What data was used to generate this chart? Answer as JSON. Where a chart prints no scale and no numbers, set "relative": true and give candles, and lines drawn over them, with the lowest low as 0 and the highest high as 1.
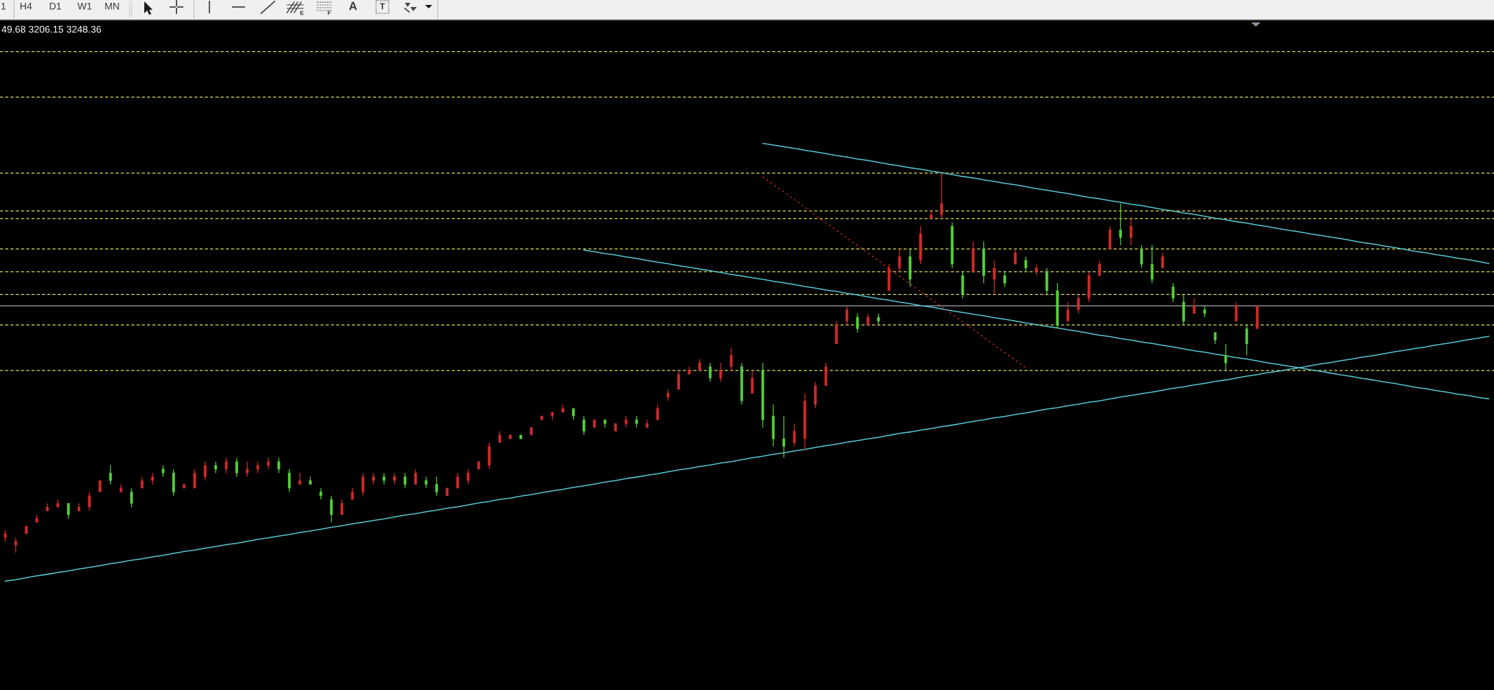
{
  "chart_data": {
    "type": "candlestick",
    "relative": true,
    "categories": [
      null,
      null,
      null,
      null,
      null,
      null,
      null,
      null,
      null,
      null,
      null,
      null,
      null,
      null,
      null,
      null,
      null,
      null,
      null,
      null,
      null,
      null,
      null,
      null,
      null,
      null,
      null,
      null,
      null,
      null,
      null,
      null,
      null,
      null,
      null,
      null,
      null,
      null,
      null,
      null,
      null,
      null,
      null,
      null,
      null,
      null,
      null,
      null,
      null,
      null,
      null,
      null,
      null,
      null,
      null,
      null,
      null,
      null,
      null,
      null,
      null,
      null,
      null,
      null,
      null,
      null,
      null,
      null,
      null,
      null,
      null,
      null,
      null,
      null,
      null,
      null,
      null,
      null,
      null,
      null,
      null,
      null,
      null,
      null,
      null,
      null,
      null,
      null,
      null,
      null,
      null,
      null,
      null,
      null,
      null,
      null,
      null,
      null,
      null,
      null,
      null,
      null,
      null,
      null,
      null,
      null,
      null,
      null,
      null,
      null,
      null,
      null,
      null,
      null,
      null,
      null,
      null,
      null,
      null,
      null,
      null,
      null,
      null,
      null,
      null,
      null,
      null,
      null,
      null,
      null,
      null,
      null,
      null,
      null,
      null,
      null,
      null,
      null,
      null,
      null,
      null,
      null
    ],
    "ohlc": [
      [
        0.04,
        0.06,
        0.03,
        0.05
      ],
      [
        0.02,
        0.04,
        0.0,
        0.03
      ],
      [
        0.05,
        0.07,
        0.05,
        0.07
      ],
      [
        0.08,
        0.1,
        0.08,
        0.09
      ],
      [
        0.11,
        0.13,
        0.11,
        0.12
      ],
      [
        0.12,
        0.14,
        0.12,
        0.13
      ],
      [
        0.13,
        0.13,
        0.09,
        0.1
      ],
      [
        0.11,
        0.13,
        0.11,
        0.12
      ],
      [
        0.12,
        0.16,
        0.11,
        0.15
      ],
      [
        0.16,
        0.19,
        0.16,
        0.19
      ],
      [
        0.21,
        0.23,
        0.18,
        0.19
      ],
      [
        0.16,
        0.18,
        0.16,
        0.17
      ],
      [
        0.16,
        0.17,
        0.12,
        0.13
      ],
      [
        0.17,
        0.2,
        0.17,
        0.19
      ],
      [
        0.19,
        0.21,
        0.18,
        0.2
      ],
      [
        0.22,
        0.23,
        0.2,
        0.21
      ],
      [
        0.21,
        0.22,
        0.15,
        0.16
      ],
      [
        0.17,
        0.18,
        0.17,
        0.18
      ],
      [
        0.17,
        0.22,
        0.17,
        0.21
      ],
      [
        0.2,
        0.24,
        0.19,
        0.23
      ],
      [
        0.23,
        0.24,
        0.21,
        0.22
      ],
      [
        0.22,
        0.25,
        0.21,
        0.24
      ],
      [
        0.24,
        0.25,
        0.2,
        0.21
      ],
      [
        0.21,
        0.24,
        0.2,
        0.22
      ],
      [
        0.22,
        0.24,
        0.21,
        0.23
      ],
      [
        0.23,
        0.25,
        0.22,
        0.24
      ],
      [
        0.24,
        0.25,
        0.21,
        0.22
      ],
      [
        0.21,
        0.22,
        0.16,
        0.17
      ],
      [
        0.18,
        0.21,
        0.18,
        0.19
      ],
      [
        0.19,
        0.2,
        0.18,
        0.18
      ],
      [
        0.16,
        0.17,
        0.14,
        0.15
      ],
      [
        0.14,
        0.15,
        0.08,
        0.1
      ],
      [
        0.1,
        0.14,
        0.1,
        0.13
      ],
      [
        0.14,
        0.17,
        0.14,
        0.16
      ],
      [
        0.16,
        0.21,
        0.15,
        0.2
      ],
      [
        0.19,
        0.21,
        0.18,
        0.2
      ],
      [
        0.2,
        0.21,
        0.18,
        0.19
      ],
      [
        0.19,
        0.21,
        0.18,
        0.2
      ],
      [
        0.2,
        0.21,
        0.17,
        0.18
      ],
      [
        0.18,
        0.22,
        0.18,
        0.21
      ],
      [
        0.19,
        0.2,
        0.17,
        0.18
      ],
      [
        0.18,
        0.2,
        0.15,
        0.16
      ],
      [
        0.15,
        0.17,
        0.15,
        0.17
      ],
      [
        0.17,
        0.21,
        0.17,
        0.2
      ],
      [
        0.19,
        0.22,
        0.18,
        0.21
      ],
      [
        0.22,
        0.24,
        0.22,
        0.24
      ],
      [
        0.23,
        0.29,
        0.22,
        0.28
      ],
      [
        0.29,
        0.32,
        0.29,
        0.31
      ],
      [
        0.3,
        0.31,
        0.3,
        0.31
      ],
      [
        0.31,
        0.31,
        0.3,
        0.3
      ],
      [
        0.31,
        0.33,
        0.31,
        0.33
      ],
      [
        0.35,
        0.36,
        0.35,
        0.36
      ],
      [
        0.36,
        0.37,
        0.35,
        0.37
      ],
      [
        0.37,
        0.39,
        0.37,
        0.38
      ],
      [
        0.38,
        0.38,
        0.35,
        0.36
      ],
      [
        0.35,
        0.36,
        0.31,
        0.32
      ],
      [
        0.33,
        0.35,
        0.33,
        0.35
      ],
      [
        0.35,
        0.35,
        0.33,
        0.34
      ],
      [
        0.32,
        0.34,
        0.32,
        0.34
      ],
      [
        0.34,
        0.36,
        0.33,
        0.35
      ],
      [
        0.35,
        0.36,
        0.33,
        0.34
      ],
      [
        0.33,
        0.35,
        0.33,
        0.34
      ],
      [
        0.35,
        0.39,
        0.35,
        0.38
      ],
      [
        0.41,
        0.43,
        0.4,
        0.42
      ],
      [
        0.43,
        0.48,
        0.43,
        0.47
      ],
      [
        0.47,
        0.49,
        0.47,
        0.48
      ],
      [
        0.48,
        0.51,
        0.48,
        0.5
      ],
      [
        0.49,
        0.5,
        0.45,
        0.46
      ],
      [
        0.46,
        0.5,
        0.45,
        0.48
      ],
      [
        0.49,
        0.54,
        0.48,
        0.52
      ],
      [
        0.49,
        0.5,
        0.39,
        0.4
      ],
      [
        0.42,
        0.48,
        0.42,
        0.46
      ],
      [
        0.48,
        0.5,
        0.33,
        0.35
      ],
      [
        0.36,
        0.39,
        0.28,
        0.3
      ],
      [
        0.3,
        0.36,
        0.25,
        0.28
      ],
      [
        0.29,
        0.34,
        0.28,
        0.32
      ],
      [
        0.3,
        0.42,
        0.27,
        0.4
      ],
      [
        0.39,
        0.45,
        0.38,
        0.44
      ],
      [
        0.44,
        0.5,
        0.44,
        0.49
      ],
      [
        0.55,
        0.61,
        0.55,
        0.6
      ],
      [
        0.61,
        0.65,
        0.6,
        0.64
      ],
      [
        0.62,
        0.63,
        0.58,
        0.59
      ],
      [
        0.6,
        0.63,
        0.6,
        0.62
      ],
      [
        0.62,
        0.63,
        0.6,
        0.61
      ],
      [
        0.69,
        0.76,
        0.69,
        0.75
      ],
      [
        0.75,
        0.8,
        0.74,
        0.78
      ],
      [
        0.78,
        0.8,
        0.7,
        0.72
      ],
      [
        0.77,
        0.86,
        0.76,
        0.84
      ],
      [
        0.88,
        0.9,
        0.88,
        0.89
      ],
      [
        0.89,
        1.0,
        0.88,
        0.92
      ],
      [
        0.86,
        0.87,
        0.75,
        0.76
      ],
      [
        0.73,
        0.74,
        0.67,
        0.68
      ],
      [
        0.74,
        0.82,
        0.74,
        0.8
      ],
      [
        0.8,
        0.82,
        0.71,
        0.73
      ],
      [
        0.72,
        0.77,
        0.68,
        0.75
      ],
      [
        0.73,
        0.74,
        0.7,
        0.71
      ],
      [
        0.76,
        0.8,
        0.76,
        0.79
      ],
      [
        0.77,
        0.78,
        0.74,
        0.75
      ],
      [
        0.74,
        0.76,
        0.73,
        0.75
      ],
      [
        0.74,
        0.75,
        0.68,
        0.69
      ],
      [
        0.69,
        0.71,
        0.59,
        0.6
      ],
      [
        0.61,
        0.66,
        0.61,
        0.64
      ],
      [
        0.64,
        0.68,
        0.63,
        0.67
      ],
      [
        0.67,
        0.74,
        0.66,
        0.73
      ],
      [
        0.73,
        0.77,
        0.73,
        0.76
      ],
      [
        0.8,
        0.86,
        0.8,
        0.85
      ],
      [
        0.85,
        0.92,
        0.81,
        0.83
      ],
      [
        0.83,
        0.88,
        0.81,
        0.86
      ],
      [
        0.8,
        0.81,
        0.75,
        0.76
      ],
      [
        0.76,
        0.81,
        0.71,
        0.72
      ],
      [
        0.75,
        0.79,
        0.75,
        0.78
      ],
      [
        0.7,
        0.71,
        0.66,
        0.67
      ],
      [
        0.66,
        0.68,
        0.6,
        0.61
      ],
      [
        0.63,
        0.67,
        0.63,
        0.65
      ],
      [
        0.64,
        0.65,
        0.62,
        0.63
      ],
      [
        0.58,
        0.58,
        0.55,
        0.56
      ],
      [
        0.52,
        0.55,
        0.48,
        0.5
      ],
      [
        0.61,
        0.66,
        0.61,
        0.65
      ],
      [
        0.59,
        0.6,
        0.52,
        0.55
      ],
      [
        0.59,
        0.65,
        0.59,
        0.65
      ],
      null,
      null,
      null,
      null,
      null,
      null,
      null,
      null,
      null,
      null,
      null,
      null,
      null,
      null,
      null,
      null,
      null,
      null,
      null,
      null,
      null,
      null
    ],
    "colors": [
      "#d42a2a",
      "#d42a2a",
      "#d42a2a",
      "#d42a2a",
      "#d42a2a",
      "#d42a2a",
      "#55d13b",
      "#d42a2a",
      "#d42a2a",
      "#d42a2a",
      "#55d13b",
      "#d42a2a",
      "#55d13b",
      "#d42a2a",
      "#d42a2a",
      "#55d13b",
      "#55d13b",
      "#d42a2a",
      "#d42a2a",
      "#d42a2a",
      "#55d13b",
      "#d42a2a",
      "#55d13b",
      "#d42a2a",
      "#d42a2a",
      "#d42a2a",
      "#55d13b",
      "#55d13b",
      "#d42a2a",
      "#55d13b",
      "#55d13b",
      "#55d13b",
      "#d42a2a",
      "#d42a2a",
      "#d42a2a",
      "#d42a2a",
      "#55d13b",
      "#d42a2a",
      "#55d13b",
      "#d42a2a",
      "#55d13b",
      "#55d13b",
      "#d42a2a",
      "#d42a2a",
      "#d42a2a",
      "#d42a2a",
      "#d42a2a",
      "#d42a2a",
      "#d42a2a",
      "#55d13b",
      "#d42a2a",
      "#d42a2a",
      "#d42a2a",
      "#d42a2a",
      "#55d13b",
      "#55d13b",
      "#d42a2a",
      "#55d13b",
      "#d42a2a",
      "#d42a2a",
      "#55d13b",
      "#d42a2a",
      "#d42a2a",
      "#d42a2a",
      "#d42a2a",
      "#d42a2a",
      "#d42a2a",
      "#55d13b",
      "#d42a2a",
      "#d42a2a",
      "#55d13b",
      "#d42a2a",
      "#55d13b",
      "#55d13b",
      "#55d13b",
      "#d42a2a",
      "#d42a2a",
      "#d42a2a",
      "#d42a2a",
      "#d42a2a",
      "#d42a2a",
      "#55d13b",
      "#d42a2a",
      "#55d13b",
      "#d42a2a",
      "#d42a2a",
      "#55d13b",
      "#d42a2a",
      "#d42a2a",
      "#d42a2a",
      "#55d13b",
      "#55d13b",
      "#d42a2a",
      "#55d13b",
      "#d42a2a",
      "#55d13b",
      "#d42a2a",
      "#55d13b",
      "#d42a2a",
      "#55d13b",
      "#55d13b",
      "#d42a2a",
      "#d42a2a",
      "#d42a2a",
      "#d42a2a",
      "#d42a2a",
      "#55d13b",
      "#d42a2a",
      "#55d13b",
      "#55d13b",
      "#d42a2a",
      "#55d13b",
      "#55d13b",
      "#d42a2a",
      "#55d13b",
      "#55d13b",
      "#55d13b",
      "#d42a2a",
      "#55d13b",
      "#d42a2a",
      null,
      null,
      null,
      null,
      null,
      null,
      null,
      null,
      null,
      null,
      null,
      null,
      null,
      null,
      null,
      null,
      null,
      null,
      null,
      null,
      null,
      null
    ],
    "series": [
      {
        "type": "line",
        "color": "#56c5d0",
        "values": [
          -0.075,
          -0.071,
          -0.066,
          -0.061,
          -0.057,
          -0.052,
          -0.048,
          -0.043,
          -0.039,
          -0.034,
          -0.029,
          -0.025,
          -0.02,
          -0.016,
          -0.011,
          -0.007,
          -0.002,
          0.003,
          0.007,
          0.012,
          0.016,
          0.021,
          0.025,
          0.03,
          0.035,
          0.039,
          0.044,
          0.048,
          0.053,
          0.057,
          0.062,
          0.067,
          0.071,
          0.076,
          0.08,
          0.085,
          0.089,
          0.094,
          0.099,
          0.103,
          0.108,
          0.112,
          0.117,
          0.121,
          0.126,
          0.131,
          0.135,
          0.14,
          0.144,
          0.149,
          0.153,
          0.158,
          0.163,
          0.167,
          0.172,
          0.176,
          0.181,
          0.186,
          0.19,
          0.195,
          0.199,
          0.204,
          0.208,
          0.213,
          0.218,
          0.222,
          0.227,
          0.231,
          0.236,
          0.24,
          0.245,
          0.25,
          0.254,
          0.259,
          0.263,
          0.268,
          0.272,
          0.277,
          0.282,
          0.286,
          0.291,
          0.295,
          0.3,
          0.304,
          0.309,
          0.314,
          0.318,
          0.323,
          0.327,
          0.332,
          0.336,
          0.341,
          0.346,
          0.35,
          0.355,
          0.359,
          0.364,
          0.368,
          0.373,
          0.378,
          0.382,
          0.387,
          0.391,
          0.396,
          0.4,
          0.405,
          0.41,
          0.414,
          0.419,
          0.423,
          0.428,
          0.433,
          0.437,
          0.442,
          0.446,
          0.451,
          0.455,
          0.46,
          0.465,
          0.469,
          0.474,
          0.478,
          0.483,
          0.487,
          0.492,
          0.497,
          0.501,
          0.506,
          0.51,
          0.515,
          0.519,
          0.524,
          0.529,
          0.533,
          0.538,
          0.542,
          0.547,
          0.551,
          0.556,
          0.561,
          0.565,
          0.57
        ]
      },
      {
        "type": "line",
        "color": "#56c5d0",
        "values": [
          null,
          null,
          null,
          null,
          null,
          null,
          null,
          null,
          null,
          null,
          null,
          null,
          null,
          null,
          null,
          null,
          null,
          null,
          null,
          null,
          null,
          null,
          null,
          null,
          null,
          null,
          null,
          null,
          null,
          null,
          null,
          null,
          null,
          null,
          null,
          null,
          null,
          null,
          null,
          null,
          null,
          null,
          null,
          null,
          null,
          null,
          null,
          null,
          null,
          null,
          null,
          null,
          null,
          null,
          null,
          null,
          null,
          null,
          null,
          null,
          null,
          null,
          null,
          null,
          null,
          null,
          null,
          null,
          null,
          null,
          null,
          null,
          1.078,
          1.074,
          1.069,
          1.065,
          1.06,
          1.056,
          1.051,
          1.046,
          1.042,
          1.037,
          1.033,
          1.028,
          1.023,
          1.019,
          1.014,
          1.01,
          1.005,
          1.001,
          0.996,
          0.991,
          0.987,
          0.982,
          0.978,
          0.973,
          0.969,
          0.964,
          0.959,
          0.955,
          0.95,
          0.946,
          0.941,
          0.936,
          0.932,
          0.927,
          0.923,
          0.918,
          0.914,
          0.909,
          0.904,
          0.9,
          0.895,
          0.891,
          0.886,
          0.881,
          0.877,
          0.872,
          0.868,
          0.863,
          0.859,
          0.854,
          0.849,
          0.845,
          0.84,
          0.836,
          0.831,
          0.827,
          0.822,
          0.817,
          0.813,
          0.808,
          0.804,
          0.799,
          0.794,
          0.79,
          0.785,
          0.781,
          0.776,
          0.772,
          0.767,
          0.762
        ]
      },
      {
        "type": "line",
        "color": "#56c5d0",
        "values": [
          null,
          null,
          null,
          null,
          null,
          null,
          null,
          null,
          null,
          null,
          null,
          null,
          null,
          null,
          null,
          null,
          null,
          null,
          null,
          null,
          null,
          null,
          null,
          null,
          null,
          null,
          null,
          null,
          null,
          null,
          null,
          null,
          null,
          null,
          null,
          null,
          null,
          null,
          null,
          null,
          null,
          null,
          null,
          null,
          null,
          null,
          null,
          null,
          null,
          null,
          null,
          null,
          null,
          null,
          null,
          0.797,
          0.793,
          0.788,
          0.784,
          0.779,
          0.775,
          0.77,
          0.765,
          0.761,
          0.756,
          0.752,
          0.747,
          0.743,
          0.738,
          0.733,
          0.729,
          0.724,
          0.72,
          0.715,
          0.711,
          0.706,
          0.701,
          0.697,
          0.692,
          0.688,
          0.683,
          0.679,
          0.674,
          0.669,
          0.665,
          0.66,
          0.656,
          0.651,
          0.647,
          0.642,
          0.637,
          0.633,
          0.628,
          0.624,
          0.619,
          0.615,
          0.61,
          0.605,
          0.601,
          0.596,
          0.592,
          0.587,
          0.583,
          0.578,
          0.573,
          0.569,
          0.564,
          0.56,
          0.555,
          0.551,
          0.546,
          0.542,
          0.537,
          0.532,
          0.528,
          0.523,
          0.519,
          0.514,
          0.51,
          0.505,
          0.5,
          0.496,
          0.491,
          0.487,
          0.482,
          0.478,
          0.473,
          0.468,
          0.464,
          0.459,
          0.455,
          0.45,
          0.446,
          0.441,
          0.436,
          0.432,
          0.427,
          0.423,
          0.418,
          0.414,
          0.409,
          0.405
        ]
      },
      {
        "type": "line",
        "color": "#c8281e",
        "line_style": "dotted",
        "values": [
          null,
          null,
          null,
          null,
          null,
          null,
          null,
          null,
          null,
          null,
          null,
          null,
          null,
          null,
          null,
          null,
          null,
          null,
          null,
          null,
          null,
          null,
          null,
          null,
          null,
          null,
          null,
          null,
          null,
          null,
          null,
          null,
          null,
          null,
          null,
          null,
          null,
          null,
          null,
          null,
          null,
          null,
          null,
          null,
          null,
          null,
          null,
          null,
          null,
          null,
          null,
          null,
          null,
          null,
          null,
          null,
          null,
          null,
          null,
          null,
          null,
          null,
          null,
          null,
          null,
          null,
          null,
          null,
          null,
          null,
          null,
          null,
          0.99,
          0.97,
          0.95,
          0.93,
          0.91,
          0.889,
          0.869,
          0.849,
          0.829,
          0.809,
          0.789,
          0.769,
          0.749,
          0.728,
          0.708,
          0.688,
          0.668,
          0.648,
          0.628,
          0.608,
          0.588,
          0.567,
          0.547,
          0.527,
          0.507,
          0.487,
          null,
          null,
          null,
          null,
          null,
          null,
          null,
          null,
          null,
          null,
          null,
          null,
          null,
          null,
          null,
          null,
          null,
          null,
          null,
          null,
          null,
          null,
          null,
          null,
          null,
          null,
          null,
          null,
          null,
          null,
          null,
          null,
          null,
          null,
          null,
          null,
          null,
          null,
          null,
          null,
          null,
          null,
          null,
          null
        ]
      }
    ],
    "ref_lines": [
      {
        "axis": "y",
        "value": 1.32,
        "color": "#e2e25a",
        "line_style": "dashed"
      },
      {
        "axis": "y",
        "value": 1.2,
        "color": "#e2e25a",
        "line_style": "dashed"
      },
      {
        "axis": "y",
        "value": 1.0,
        "color": "#e2e25a",
        "line_style": "dashed"
      },
      {
        "axis": "y",
        "value": 0.9,
        "color": "#e2e25a",
        "line_style": "dashed"
      },
      {
        "axis": "y",
        "value": 0.88,
        "color": "#e2e25a",
        "line_style": "dashed"
      },
      {
        "axis": "y",
        "value": 0.8,
        "color": "#e2e25a",
        "line_style": "dashed"
      },
      {
        "axis": "y",
        "value": 0.74,
        "color": "#e2e25a",
        "line_style": "dashed"
      },
      {
        "axis": "y",
        "value": 0.68,
        "color": "#e2e25a",
        "line_style": "dashed"
      },
      {
        "axis": "y",
        "value": 0.6,
        "color": "#e2e25a",
        "line_style": "dashed"
      },
      {
        "axis": "y",
        "value": 0.48,
        "color": "#e2e25a",
        "line_style": "dashed"
      },
      {
        "axis": "y",
        "value": 0.65,
        "color": "#9fa3ab",
        "line_style": "solid"
      }
    ],
    "annotations": [
      "49.68 3206.15 3248.36",
      "1",
      "H4",
      "D1",
      "W1",
      "MN",
      "E",
      "F",
      "A",
      "T"
    ]
  }
}
